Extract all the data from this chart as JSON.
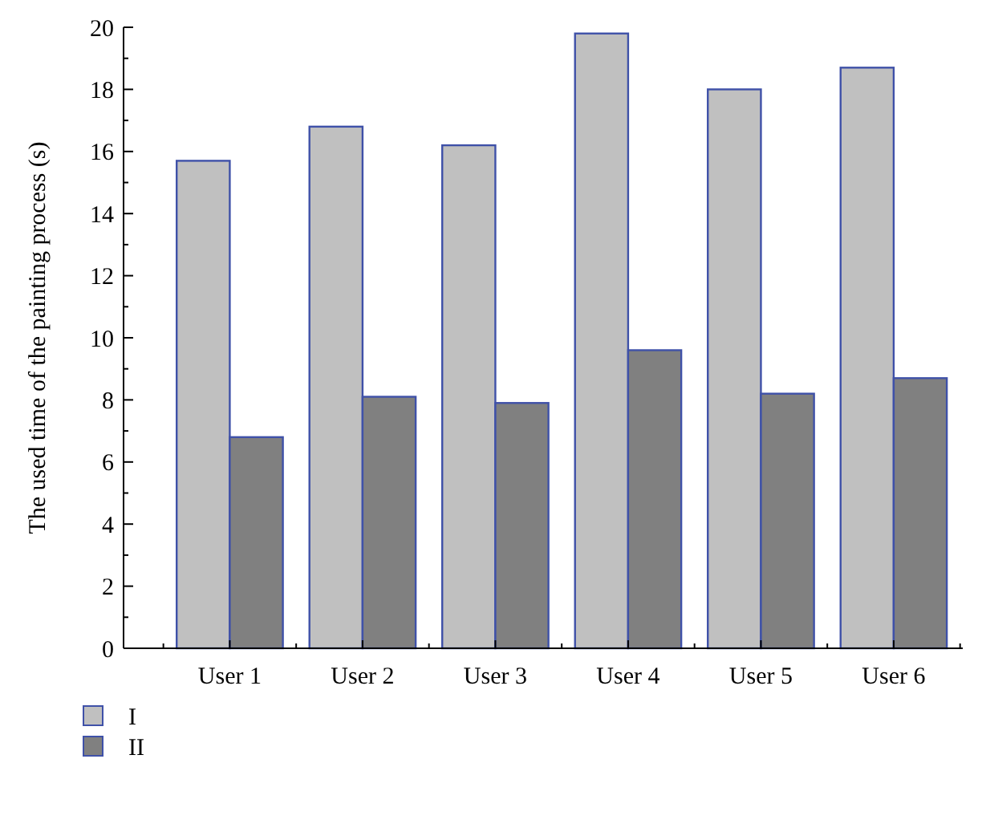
{
  "chart_data": {
    "type": "bar",
    "ylabel": "The used time of the painting process (s)",
    "categories": [
      "User 1",
      "User 2",
      "User 3",
      "User 4",
      "User 5",
      "User 6"
    ],
    "series": [
      {
        "name": "I",
        "color": "#c0c0c0",
        "values": [
          15.7,
          16.8,
          16.2,
          19.8,
          18.0,
          18.7
        ]
      },
      {
        "name": "II",
        "color": "#808080",
        "values": [
          6.8,
          8.1,
          7.9,
          9.6,
          8.2,
          8.7
        ]
      }
    ],
    "ylim": [
      0,
      20
    ],
    "yticks": [
      0,
      2,
      4,
      6,
      8,
      10,
      12,
      14,
      16,
      18,
      20
    ],
    "grid": false,
    "legend": "bottom left"
  }
}
